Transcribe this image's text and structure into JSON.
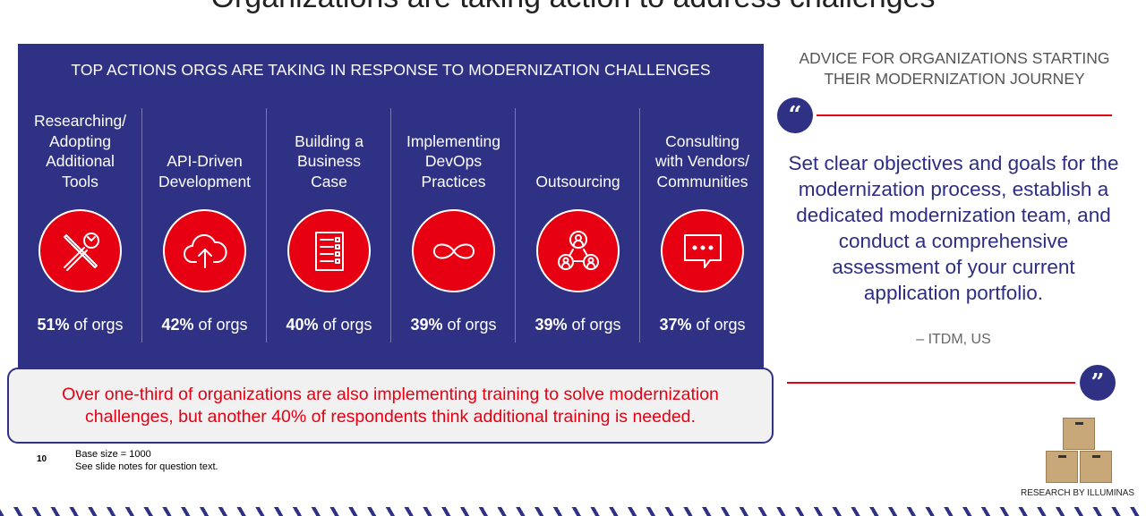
{
  "slide": {
    "title": "Organizations are taking action to address challenges",
    "page_number": "10",
    "footnote_base": "Base size = 1000",
    "footnote_notes": "See slide notes for question text."
  },
  "panel": {
    "title": "TOP ACTIONS ORGS ARE TAKING IN RESPONSE TO MODERNIZATION CHALLENGES",
    "suffix": "of orgs",
    "actions": [
      {
        "label": "Researching/\nAdopting\nAdditional\nTools",
        "pct": "51%",
        "icon": "tools-icon"
      },
      {
        "label": "API-Driven\nDevelopment",
        "pct": "42%",
        "icon": "cloud-upload-icon"
      },
      {
        "label": "Building a\nBusiness\nCase",
        "pct": "40%",
        "icon": "document-list-icon"
      },
      {
        "label": "Implementing\nDevOps\nPractices",
        "pct": "39%",
        "icon": "infinity-icon"
      },
      {
        "label": "Outsourcing",
        "pct": "39%",
        "icon": "people-network-icon"
      },
      {
        "label": "Consulting\nwith Vendors/\nCommunities",
        "pct": "37%",
        "icon": "chat-bubble-icon"
      }
    ]
  },
  "callout": {
    "text": "Over one-third of organizations are also implementing training to solve modernization challenges, but another 40% of respondents think additional training is needed."
  },
  "advice": {
    "title": "ADVICE FOR ORGANIZATIONS STARTING THEIR MODERNIZATION JOURNEY",
    "quote": "Set clear objectives and goals for the modernization process, establish a dedicated modernization team, and conduct a comprehensive assessment of your current application portfolio.",
    "attribution": "– ITDM, US",
    "open_quote": "“",
    "close_quote": "”"
  },
  "brand": {
    "text": "RESEARCH BY ILLUMINAS"
  },
  "colors": {
    "panel": "#2f3184",
    "accent": "#e60012",
    "quote_text": "#2d2e83"
  }
}
